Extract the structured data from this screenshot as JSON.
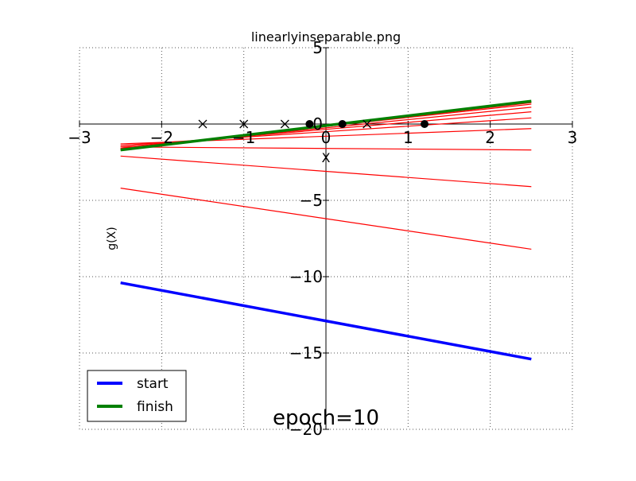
{
  "chart_data": {
    "type": "line",
    "title": "linearlyinseparable.png",
    "xlabel": "X",
    "ylabel": "g(X)",
    "xlim": [
      -3,
      3
    ],
    "ylim": [
      -20,
      5
    ],
    "xticks": [
      -3,
      -2,
      -1,
      0,
      1,
      2,
      3
    ],
    "yticks": [
      5,
      0,
      -5,
      -10,
      -15,
      -20
    ],
    "xtick_labels": [
      "−3",
      "−2",
      "−1",
      "0",
      "1",
      "2",
      "3"
    ],
    "ytick_labels": [
      "5",
      "0",
      "−5",
      "−10",
      "−15",
      "−20"
    ],
    "grid": true,
    "legend_position": "lower-left",
    "annotation": "epoch=10",
    "colors": {
      "start": "#0000ff",
      "finish": "#008000",
      "intermediate": "#ff0000",
      "points": "#000000"
    },
    "series": [
      {
        "name": "start",
        "x": [
          -2.5,
          2.5
        ],
        "y": [
          -10.4,
          -15.4
        ]
      },
      {
        "name": "finish",
        "x": [
          -2.5,
          2.5
        ],
        "y": [
          -1.7,
          1.5
        ]
      }
    ],
    "intermediate_lines": [
      {
        "x": [
          -2.5,
          2.5
        ],
        "y": [
          -4.2,
          -8.2
        ]
      },
      {
        "x": [
          -2.5,
          2.5
        ],
        "y": [
          -2.1,
          -4.1
        ]
      },
      {
        "x": [
          -2.5,
          2.5
        ],
        "y": [
          -1.5,
          -1.7
        ]
      },
      {
        "x": [
          -2.5,
          2.5
        ],
        "y": [
          -1.3,
          -0.3
        ]
      },
      {
        "x": [
          -2.5,
          2.5
        ],
        "y": [
          -1.4,
          0.4
        ]
      },
      {
        "x": [
          -2.5,
          2.5
        ],
        "y": [
          -1.5,
          0.8
        ]
      },
      {
        "x": [
          -2.5,
          2.5
        ],
        "y": [
          -1.6,
          1.1
        ]
      },
      {
        "x": [
          -2.5,
          2.5
        ],
        "y": [
          -1.6,
          1.3
        ]
      },
      {
        "x": [
          -2.5,
          2.5
        ],
        "y": [
          -1.7,
          1.4
        ]
      }
    ],
    "points_class_x": {
      "x": [
        -1.5,
        -1.0,
        -0.5,
        0.5
      ],
      "y": [
        0,
        0,
        0,
        0
      ]
    },
    "points_class_dot": {
      "x": [
        -0.2,
        0.2,
        1.2
      ],
      "y": [
        0,
        0,
        0
      ]
    }
  }
}
